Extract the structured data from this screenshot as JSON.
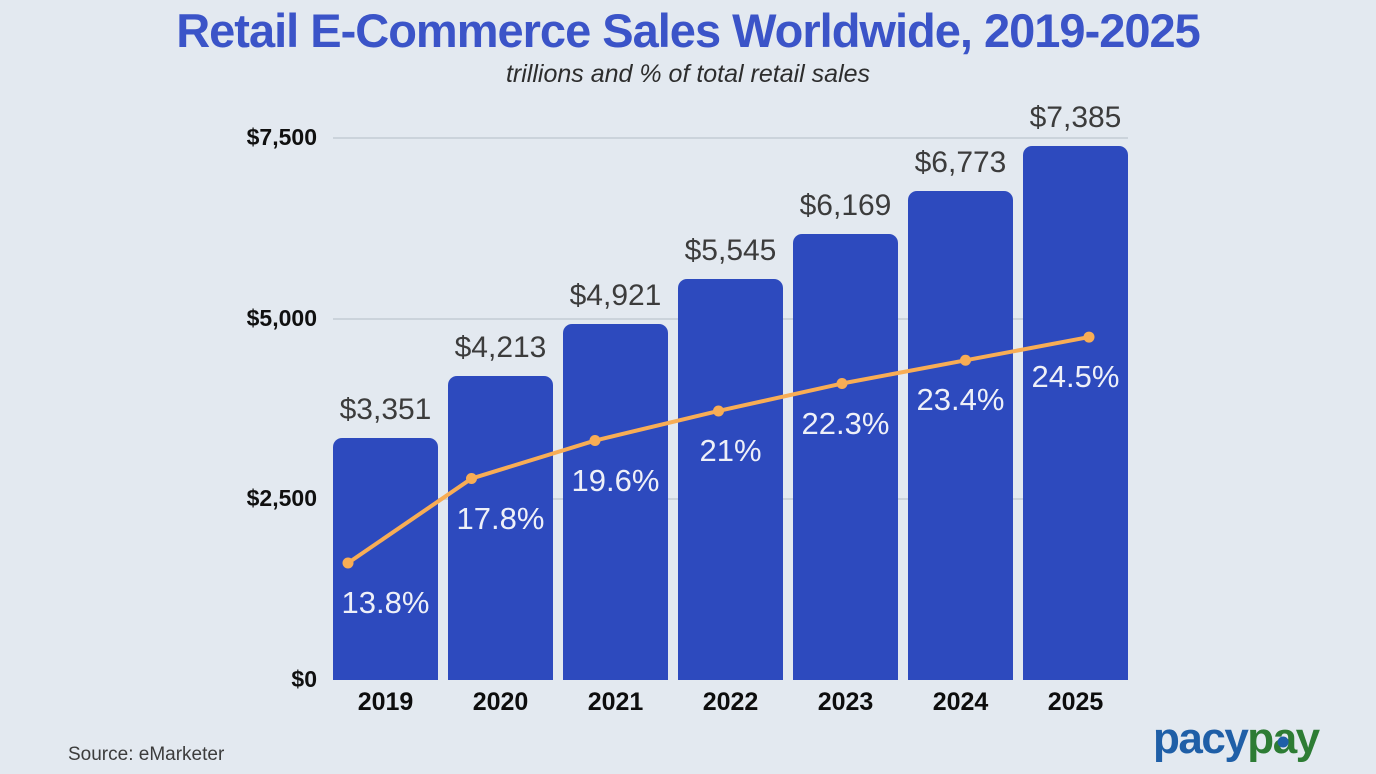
{
  "title": "Retail E-Commerce Sales Worldwide, 2019-2025",
  "subtitle": "trillions and % of total retail sales",
  "source": "Source: eMarketer",
  "logo": {
    "blue_text": "pacy",
    "green_p": "p",
    "green_a": "a",
    "green_y": "y"
  },
  "colors": {
    "background": "#e3e9f0",
    "bar": "#2d4abe",
    "title": "#3b54c8",
    "line": "#f8ad55",
    "gridline": "#cbd3db",
    "pct_label": "#eef0f8",
    "value_label": "#3c3c3c",
    "logo_blue": "#1f5fa7",
    "logo_green": "#2d7c34"
  },
  "chart_data": {
    "type": "bar",
    "title": "Retail E-Commerce Sales Worldwide, 2019-2025",
    "subtitle": "trillions and % of total retail sales",
    "categories": [
      "2019",
      "2020",
      "2021",
      "2022",
      "2023",
      "2024",
      "2025"
    ],
    "series": [
      {
        "name": "retail-ecommerce-sales",
        "type": "bar",
        "values": [
          3351,
          4213,
          4921,
          5545,
          6169,
          6773,
          7385
        ],
        "labels": [
          "$3,351",
          "$4,213",
          "$4,921",
          "$5,545",
          "$6,169",
          "$6,773",
          "$7,385"
        ]
      },
      {
        "name": "percent-of-total-retail-sales",
        "type": "line",
        "values": [
          13.8,
          17.8,
          19.6,
          21,
          22.3,
          23.4,
          24.5
        ],
        "labels": [
          "13.8%",
          "17.8%",
          "19.6%",
          "21%",
          "22.3%",
          "23.4%",
          "24.5%"
        ]
      }
    ],
    "y_ticks": [
      {
        "label": "$7,500",
        "value": 7500
      },
      {
        "label": "$5,000",
        "value": 5000
      },
      {
        "label": "$2,500",
        "value": 2500
      },
      {
        "label": "$0",
        "value": 0
      }
    ],
    "ylim": [
      0,
      7500
    ],
    "grid": true,
    "legend": "none"
  }
}
